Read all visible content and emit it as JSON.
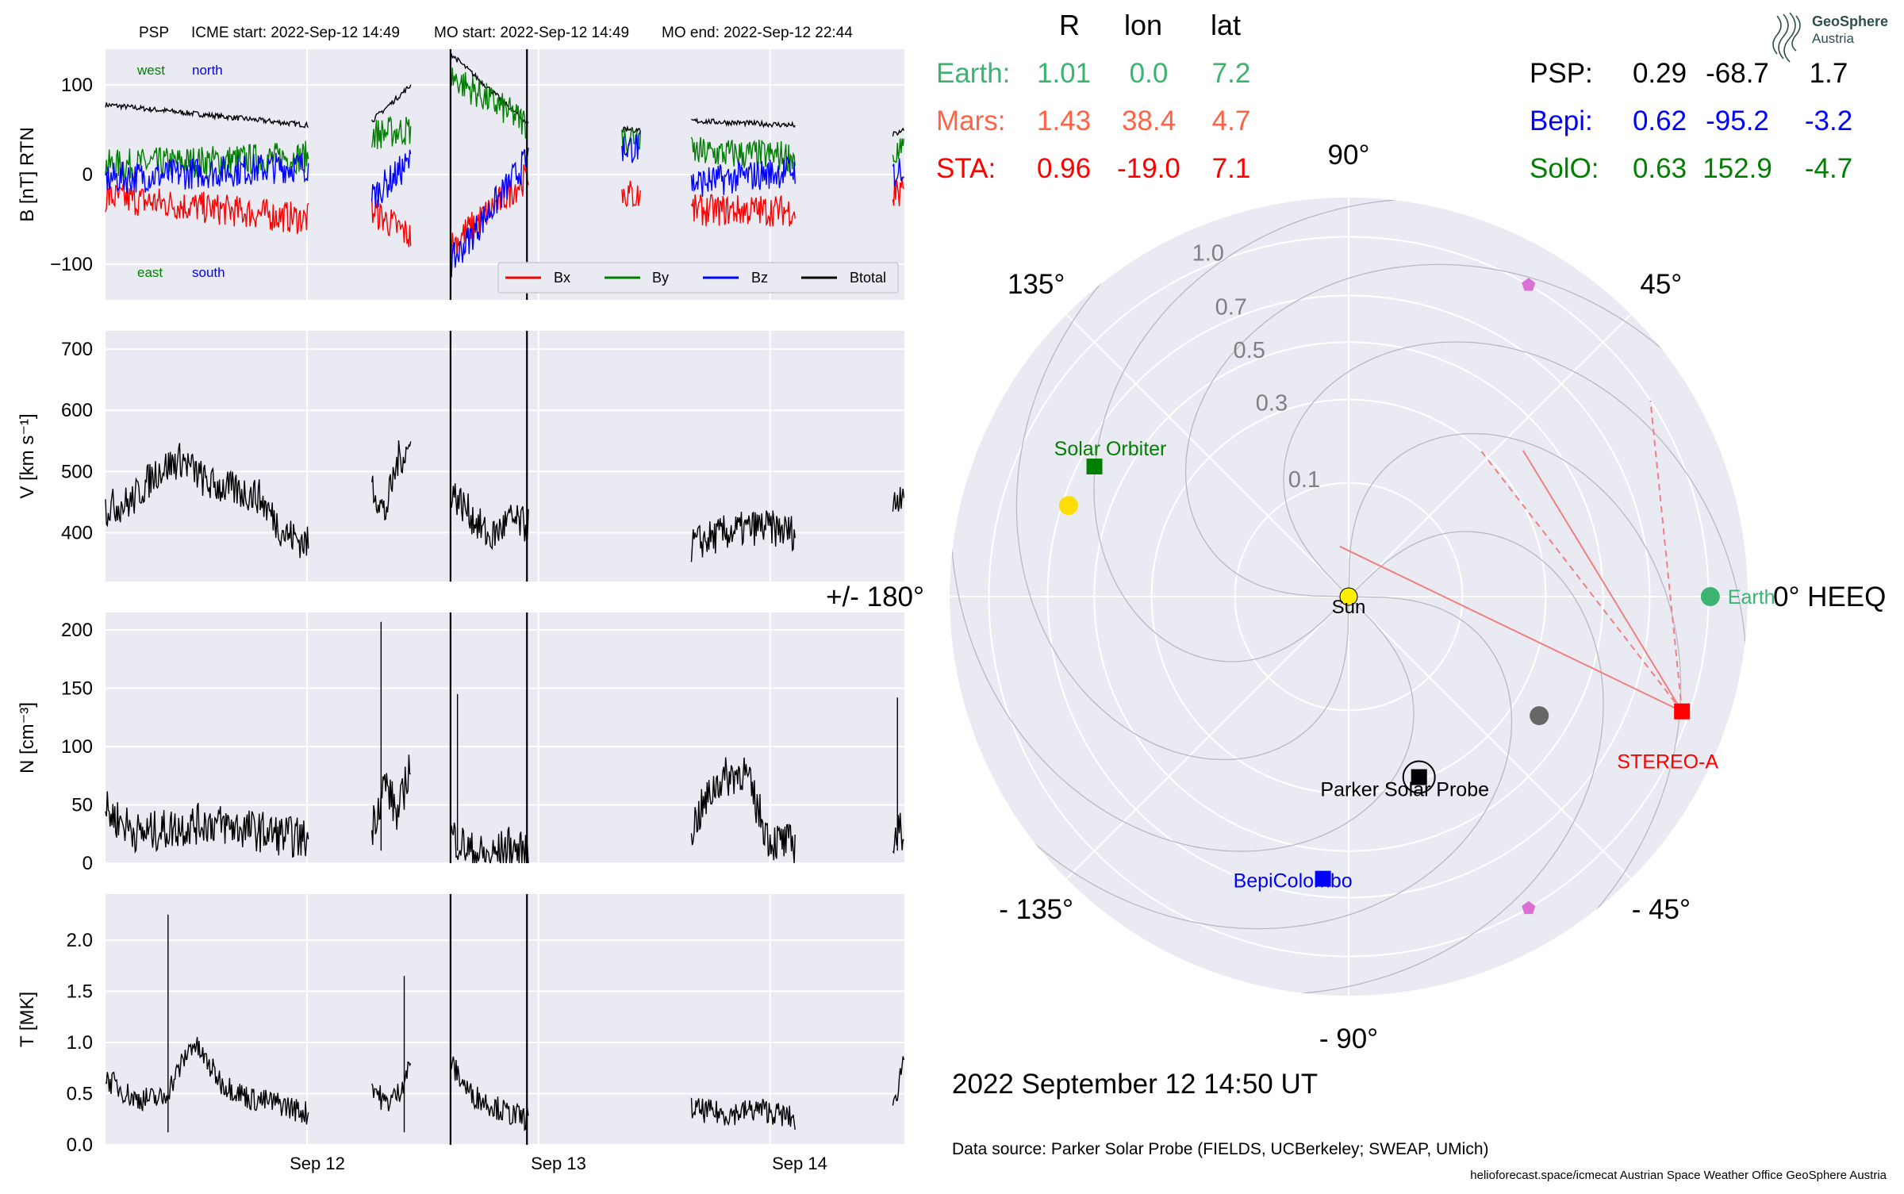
{
  "header": {
    "spacecraft": "PSP",
    "icme_start": "ICME start: 2022-Sep-12 14:49",
    "mo_start": "MO start: 2022-Sep-12 14:49",
    "mo_end": "MO end: 2022-Sep-12 22:44"
  },
  "logo": {
    "line1": "GeoSphere",
    "line2": "Austria"
  },
  "positions_table": {
    "columns": [
      "R",
      "lon",
      "lat"
    ],
    "left_rows": [
      {
        "name": "Earth:",
        "R": "1.01",
        "lon": "0.0",
        "lat": "7.2",
        "color": "#3cb371"
      },
      {
        "name": "Mars:",
        "R": "1.43",
        "lon": "38.4",
        "lat": "4.7",
        "color": "#ff6347"
      },
      {
        "name": "STA:",
        "R": "0.96",
        "lon": "-19.0",
        "lat": "7.1",
        "color": "#ff0000"
      }
    ],
    "right_rows": [
      {
        "name": "PSP:",
        "R": "0.29",
        "lon": "-68.7",
        "lat": "1.7",
        "color": "#000000"
      },
      {
        "name": "Bepi:",
        "R": "0.62",
        "lon": "-95.2",
        "lat": "-3.2",
        "color": "#0000ff"
      },
      {
        "name": "SolO:",
        "R": "0.63",
        "lon": "152.9",
        "lat": "-4.7",
        "color": "#008000"
      }
    ]
  },
  "polar": {
    "angle_labels": [
      {
        "text": "90°",
        "deg": 90
      },
      {
        "text": "45°",
        "deg": 45
      },
      {
        "text": "0° HEEQ",
        "deg": 0
      },
      {
        "text": "- 45°",
        "deg": -45
      },
      {
        "text": "- 90°",
        "deg": -90
      },
      {
        "text": "- 135°",
        "deg": -135
      },
      {
        "text": "+/- 180°",
        "deg": 180
      },
      {
        "text": "135°",
        "deg": 135
      }
    ],
    "radial_ticks": [
      0.1,
      0.3,
      0.5,
      0.7,
      1.0
    ],
    "sun_label": "Sun",
    "bodies": [
      {
        "name": "Earth",
        "label": "Earth",
        "r": 1.01,
        "lon": 0.0,
        "marker": "circle",
        "color": "#3cb371"
      },
      {
        "name": "STEREO-A",
        "label": "STEREO-A",
        "r": 0.96,
        "lon": -19.0,
        "marker": "square",
        "color": "#ff0000"
      },
      {
        "name": "Parker Solar Probe",
        "label": "Parker Solar Probe",
        "r": 0.29,
        "lon": -68.7,
        "marker": "square",
        "color": "#000000"
      },
      {
        "name": "BepiColombo",
        "label": "BepiColombo",
        "r": 0.62,
        "lon": -95.2,
        "marker": "square",
        "color": "#0000ff"
      },
      {
        "name": "Solar Orbiter",
        "label": "Solar Orbiter",
        "r": 0.63,
        "lon": 152.9,
        "marker": "square",
        "color": "#008000"
      },
      {
        "name": "Solar Orbiter yellow",
        "label": "",
        "r": 0.67,
        "lon": 162.0,
        "marker": "circle",
        "color": "#ffdd00"
      },
      {
        "name": "grey body",
        "label": "",
        "r": 0.39,
        "lon": -32.0,
        "marker": "circle",
        "color": "#666666"
      },
      {
        "name": "L4",
        "label": "",
        "r": 1.0,
        "lon": 60.0,
        "marker": "pentagon",
        "color": "#da70d6"
      },
      {
        "name": "L5",
        "label": "",
        "r": 1.0,
        "lon": -60.0,
        "marker": "pentagon",
        "color": "#da70d6"
      }
    ],
    "date_label": "2022 September 12  14:50 UT"
  },
  "footer": {
    "data_source": "Data source: Parker Solar Probe (FIELDS, UCBerkeley; SWEAP, UMich)",
    "credits": "helioforecast.space/icmecat   Austrian Space Weather Office   GeoSphere Austria"
  },
  "colors": {
    "bx": "#ff0000",
    "by": "#008000",
    "bz": "#0000ff",
    "bt": "#000000",
    "panel_bg": "#eaeaf2"
  },
  "chart_data": [
    {
      "type": "line",
      "title": "",
      "ylabel": "B [nT] RTN",
      "ylim": [
        -140,
        140
      ],
      "yticks": [
        -100,
        0,
        100
      ],
      "xlim": [
        0,
        3.45
      ],
      "xticks": [
        {
          "x": 0.87,
          "label": "Sep 12"
        },
        {
          "x": 1.87,
          "label": "Sep 13"
        },
        {
          "x": 2.87,
          "label": "Sep 14"
        }
      ],
      "vlines": [
        1.49,
        1.82
      ],
      "annotations": [
        "west",
        "north",
        "east",
        "south"
      ],
      "legend": [
        "Bx",
        "By",
        "Bz",
        "Btotal"
      ],
      "legend_position": "lower-right",
      "segments": [
        {
          "x0": 0.0,
          "x1": 0.88,
          "btotal": [
            78,
            55
          ],
          "bx": [
            -25,
            -50
          ],
          "by": [
            10,
            20
          ],
          "bz": [
            -5,
            10
          ]
        },
        {
          "x0": 1.15,
          "x1": 1.32,
          "btotal": [
            60,
            100
          ],
          "bx": [
            -40,
            -70
          ],
          "by": [
            45,
            50
          ],
          "bz": [
            -25,
            15
          ]
        },
        {
          "x0": 1.49,
          "x1": 1.83,
          "btotal": [
            135,
            55
          ],
          "bx": [
            -80,
            0
          ],
          "by": [
            110,
            55
          ],
          "bz": [
            -100,
            20
          ]
        },
        {
          "x0": 2.23,
          "x1": 2.31,
          "btotal": [
            50,
            50
          ],
          "bx": [
            -20,
            -25
          ],
          "by": [
            40,
            45
          ],
          "bz": [
            30,
            30
          ]
        },
        {
          "x0": 2.53,
          "x1": 2.98,
          "btotal": [
            60,
            55
          ],
          "bx": [
            -40,
            -40
          ],
          "by": [
            25,
            20
          ],
          "bz": [
            -10,
            5
          ]
        },
        {
          "x0": 3.4,
          "x1": 3.45,
          "btotal": [
            45,
            50
          ],
          "bx": [
            -20,
            -20
          ],
          "by": [
            20,
            25
          ],
          "bz": [
            0,
            10
          ]
        }
      ]
    },
    {
      "type": "line",
      "ylabel": "V [km s⁻¹]",
      "ylim": [
        320,
        730
      ],
      "yticks": [
        400,
        500,
        600,
        700
      ],
      "vlines": [
        1.49,
        1.82
      ],
      "segments": [
        {
          "x0": 0.0,
          "x1": 0.88,
          "levels": [
            440,
            450,
            500,
            520,
            480,
            470,
            460,
            400,
            380
          ]
        },
        {
          "x0": 1.15,
          "x1": 1.32,
          "levels": [
            480,
            430,
            520,
            540
          ]
        },
        {
          "x0": 1.49,
          "x1": 1.83,
          "levels": [
            470,
            430,
            390,
            420,
            410
          ]
        },
        {
          "x0": 2.53,
          "x1": 2.98,
          "levels": [
            380,
            400,
            410,
            400
          ]
        },
        {
          "x0": 3.4,
          "x1": 3.45,
          "levels": [
            440,
            480
          ]
        }
      ]
    },
    {
      "type": "line",
      "ylabel": "N [cm⁻³]",
      "ylim": [
        0,
        215
      ],
      "yticks": [
        0,
        50,
        100,
        150,
        200
      ],
      "vlines": [
        1.49,
        1.82
      ],
      "spikes": [
        {
          "x": 1.19,
          "y": 207
        },
        {
          "x": 1.52,
          "y": 145
        },
        {
          "x": 3.42,
          "y": 142
        }
      ],
      "segments": [
        {
          "x0": 0.0,
          "x1": 0.88,
          "levels": [
            45,
            25,
            30,
            35,
            30,
            25,
            20
          ]
        },
        {
          "x0": 1.15,
          "x1": 1.32,
          "levels": [
            30,
            70,
            40,
            90
          ]
        },
        {
          "x0": 1.49,
          "x1": 1.83,
          "levels": [
            25,
            10,
            5,
            15,
            5
          ]
        },
        {
          "x0": 2.53,
          "x1": 2.98,
          "levels": [
            30,
            70,
            80,
            20,
            15
          ]
        },
        {
          "x0": 3.4,
          "x1": 3.45,
          "levels": [
            20,
            30
          ]
        }
      ]
    },
    {
      "type": "line",
      "ylabel": "T [MK]",
      "ylim": [
        0,
        2.45
      ],
      "yticks": [
        0.0,
        0.5,
        1.0,
        1.5,
        2.0
      ],
      "vlines": [
        1.49,
        1.82
      ],
      "spikes": [
        {
          "x": 0.27,
          "y": 2.25
        },
        {
          "x": 1.29,
          "y": 1.65
        }
      ],
      "segments": [
        {
          "x0": 0.0,
          "x1": 0.88,
          "levels": [
            0.65,
            0.45,
            0.45,
            1.0,
            0.6,
            0.45,
            0.4,
            0.3
          ]
        },
        {
          "x0": 1.15,
          "x1": 1.32,
          "levels": [
            0.6,
            0.4,
            0.5,
            0.8
          ]
        },
        {
          "x0": 1.49,
          "x1": 1.83,
          "levels": [
            0.8,
            0.5,
            0.4,
            0.3,
            0.25
          ]
        },
        {
          "x0": 2.53,
          "x1": 2.98,
          "levels": [
            0.35,
            0.3,
            0.35,
            0.25
          ]
        },
        {
          "x0": 3.4,
          "x1": 3.45,
          "levels": [
            0.3,
            0.9
          ]
        }
      ]
    }
  ]
}
